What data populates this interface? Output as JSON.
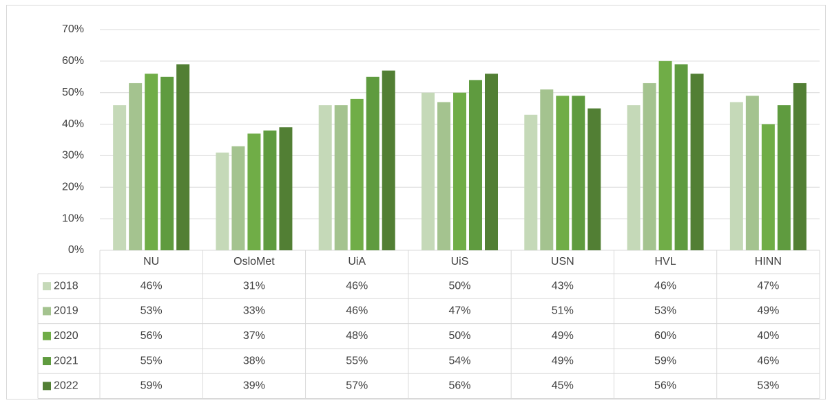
{
  "chart_data": {
    "type": "bar",
    "categories": [
      "NU",
      "OsloMet",
      "UiA",
      "UiS",
      "USN",
      "HVL",
      "HINN"
    ],
    "series": [
      {
        "name": "2018",
        "color": "#c5d9b8",
        "values": [
          46,
          31,
          46,
          50,
          43,
          46,
          47
        ],
        "value_labels": [
          "46%",
          "31%",
          "46%",
          "50%",
          "43%",
          "46%",
          "47%"
        ]
      },
      {
        "name": "2019",
        "color": "#a4c38f",
        "values": [
          53,
          33,
          46,
          47,
          51,
          53,
          49
        ],
        "value_labels": [
          "53%",
          "33%",
          "46%",
          "47%",
          "51%",
          "53%",
          "49%"
        ]
      },
      {
        "name": "2020",
        "color": "#70ad47",
        "values": [
          56,
          37,
          48,
          50,
          49,
          60,
          40
        ],
        "value_labels": [
          "56%",
          "37%",
          "48%",
          "50%",
          "49%",
          "60%",
          "40%"
        ]
      },
      {
        "name": "2021",
        "color": "#5f9b3f",
        "values": [
          55,
          38,
          55,
          54,
          49,
          59,
          46
        ],
        "value_labels": [
          "55%",
          "38%",
          "55%",
          "54%",
          "49%",
          "59%",
          "46%"
        ]
      },
      {
        "name": "2022",
        "color": "#527f34",
        "values": [
          59,
          39,
          57,
          56,
          45,
          56,
          53
        ],
        "value_labels": [
          "59%",
          "39%",
          "57%",
          "56%",
          "45%",
          "56%",
          "53%"
        ]
      }
    ],
    "ylim": [
      0,
      70
    ],
    "yticks": [
      {
        "value": 0,
        "label": "0%"
      },
      {
        "value": 10,
        "label": "10%"
      },
      {
        "value": 20,
        "label": "20%"
      },
      {
        "value": 30,
        "label": "30%"
      },
      {
        "value": 40,
        "label": "40%"
      },
      {
        "value": 50,
        "label": "50%"
      },
      {
        "value": 60,
        "label": "60%"
      },
      {
        "value": 70,
        "label": "70%"
      }
    ],
    "grid": true
  }
}
